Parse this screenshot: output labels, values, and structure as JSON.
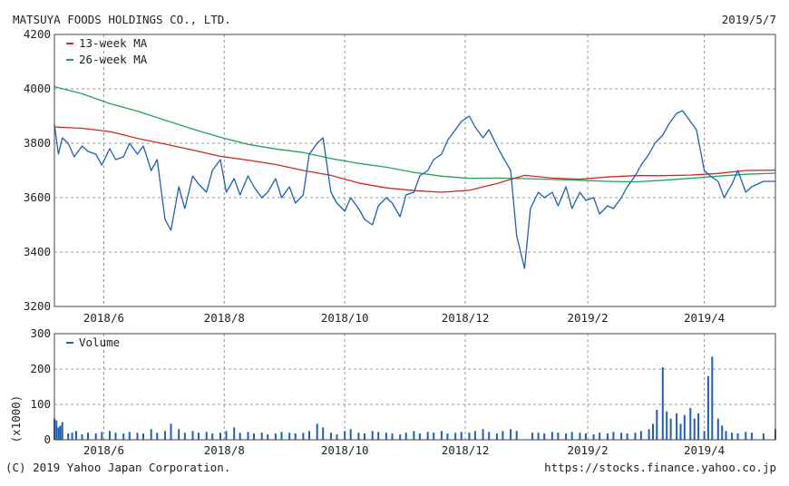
{
  "header": {
    "company": "MATSUYA FOODS HOLDINGS CO., LTD.",
    "date": "2019/5/7"
  },
  "footer": {
    "copyright": "(C) 2019 Yahoo Japan Corporation.",
    "url": "https://stocks.finance.yahoo.co.jp"
  },
  "colors": {
    "price": "#1f5fb4",
    "ma13": "#cc2a2a",
    "ma26": "#23a35a",
    "volume": "#1f5fb4",
    "grid": "#9a9a9a",
    "frame": "#444444"
  },
  "chart_data": [
    {
      "type": "line",
      "x_tick_labels": [
        "2018/6",
        "2018/8",
        "2018/10",
        "2018/12",
        "2019/2",
        "2019/4"
      ],
      "x_tick_dates": [
        "2018-06-01",
        "2018-08-01",
        "2018-10-01",
        "2018-12-01",
        "2019-02-01",
        "2019-04-01"
      ],
      "x_range": [
        "2018-05-07",
        "2019-05-07"
      ],
      "ylim": [
        3200,
        4200
      ],
      "y_ticks": [
        4200,
        4000,
        3800,
        3600,
        3400,
        3200
      ],
      "grid": true,
      "legend_position": "top-left",
      "series": [
        {
          "name": "13-week MA",
          "x": [
            "2018-05-07",
            "2018-05-21",
            "2018-06-04",
            "2018-06-18",
            "2018-07-02",
            "2018-07-16",
            "2018-07-30",
            "2018-08-13",
            "2018-08-27",
            "2018-09-10",
            "2018-09-24",
            "2018-10-08",
            "2018-10-22",
            "2018-11-05",
            "2018-11-19",
            "2018-12-03",
            "2018-12-17",
            "2018-12-31",
            "2019-01-14",
            "2019-01-28",
            "2019-02-11",
            "2019-02-25",
            "2019-03-11",
            "2019-03-25",
            "2019-04-08",
            "2019-04-22",
            "2019-05-07"
          ],
          "values": [
            3860,
            3855,
            3843,
            3818,
            3797,
            3775,
            3752,
            3738,
            3722,
            3700,
            3682,
            3654,
            3636,
            3626,
            3620,
            3627,
            3652,
            3682,
            3672,
            3668,
            3676,
            3681,
            3681,
            3683,
            3689,
            3700,
            3701
          ]
        },
        {
          "name": "26-week MA",
          "x": [
            "2018-05-07",
            "2018-05-21",
            "2018-06-04",
            "2018-06-18",
            "2018-07-02",
            "2018-07-16",
            "2018-07-30",
            "2018-08-13",
            "2018-08-27",
            "2018-09-10",
            "2018-09-24",
            "2018-10-08",
            "2018-10-22",
            "2018-11-05",
            "2018-11-19",
            "2018-12-03",
            "2018-12-17",
            "2018-12-31",
            "2019-01-14",
            "2019-01-28",
            "2019-02-11",
            "2019-02-25",
            "2019-03-11",
            "2019-03-25",
            "2019-04-08",
            "2019-04-22",
            "2019-05-07"
          ],
          "values": [
            4008,
            3982,
            3946,
            3918,
            3885,
            3852,
            3822,
            3796,
            3779,
            3766,
            3744,
            3726,
            3712,
            3693,
            3679,
            3671,
            3672,
            3670,
            3667,
            3664,
            3660,
            3658,
            3664,
            3671,
            3679,
            3686,
            3690
          ]
        },
        {
          "name": "",
          "x": [
            "2018-05-07",
            "2018-05-09",
            "2018-05-11",
            "2018-05-14",
            "2018-05-17",
            "2018-05-21",
            "2018-05-24",
            "2018-05-28",
            "2018-05-31",
            "2018-06-04",
            "2018-06-07",
            "2018-06-11",
            "2018-06-14",
            "2018-06-18",
            "2018-06-21",
            "2018-06-25",
            "2018-06-28",
            "2018-07-02",
            "2018-07-05",
            "2018-07-09",
            "2018-07-12",
            "2018-07-16",
            "2018-07-19",
            "2018-07-23",
            "2018-07-26",
            "2018-07-30",
            "2018-08-02",
            "2018-08-06",
            "2018-08-09",
            "2018-08-13",
            "2018-08-16",
            "2018-08-20",
            "2018-08-23",
            "2018-08-27",
            "2018-08-30",
            "2018-09-03",
            "2018-09-06",
            "2018-09-10",
            "2018-09-13",
            "2018-09-17",
            "2018-09-20",
            "2018-09-24",
            "2018-09-27",
            "2018-10-01",
            "2018-10-04",
            "2018-10-08",
            "2018-10-11",
            "2018-10-15",
            "2018-10-18",
            "2018-10-22",
            "2018-10-25",
            "2018-10-29",
            "2018-11-01",
            "2018-11-05",
            "2018-11-08",
            "2018-11-12",
            "2018-11-15",
            "2018-11-19",
            "2018-11-22",
            "2018-11-26",
            "2018-11-29",
            "2018-12-03",
            "2018-12-06",
            "2018-12-10",
            "2018-12-13",
            "2018-12-17",
            "2018-12-20",
            "2018-12-24",
            "2018-12-27",
            "2018-12-31",
            "2019-01-03",
            "2019-01-07",
            "2019-01-10",
            "2019-01-14",
            "2019-01-17",
            "2019-01-21",
            "2019-01-24",
            "2019-01-28",
            "2019-01-31",
            "2019-02-04",
            "2019-02-07",
            "2019-02-11",
            "2019-02-14",
            "2019-02-18",
            "2019-02-21",
            "2019-02-25",
            "2019-02-28",
            "2019-03-04",
            "2019-03-07",
            "2019-03-11",
            "2019-03-14",
            "2019-03-18",
            "2019-03-21",
            "2019-03-25",
            "2019-03-28",
            "2019-04-01",
            "2019-04-04",
            "2019-04-08",
            "2019-04-11",
            "2019-04-15",
            "2019-04-18",
            "2019-04-22",
            "2019-04-25",
            "2019-05-01",
            "2019-05-07"
          ],
          "values": [
            3870,
            3760,
            3820,
            3800,
            3750,
            3790,
            3770,
            3760,
            3720,
            3780,
            3740,
            3750,
            3800,
            3760,
            3790,
            3700,
            3740,
            3520,
            3480,
            3640,
            3560,
            3680,
            3650,
            3620,
            3700,
            3740,
            3620,
            3670,
            3610,
            3680,
            3640,
            3600,
            3620,
            3670,
            3600,
            3640,
            3580,
            3610,
            3760,
            3800,
            3820,
            3620,
            3580,
            3550,
            3600,
            3560,
            3520,
            3500,
            3570,
            3600,
            3580,
            3530,
            3610,
            3620,
            3680,
            3700,
            3740,
            3760,
            3810,
            3850,
            3880,
            3900,
            3860,
            3820,
            3850,
            3790,
            3750,
            3700,
            3460,
            3340,
            3560,
            3620,
            3600,
            3620,
            3570,
            3640,
            3560,
            3620,
            3590,
            3600,
            3540,
            3570,
            3560,
            3600,
            3640,
            3680,
            3720,
            3760,
            3800,
            3830,
            3870,
            3910,
            3920,
            3880,
            3850,
            3700,
            3680,
            3660,
            3600,
            3650,
            3700,
            3620,
            3640,
            3660,
            3660
          ]
        }
      ]
    },
    {
      "type": "bar",
      "legend": "Volume",
      "y_unit_label": "(x1000)",
      "ylim": [
        0,
        300
      ],
      "y_ticks": [
        300,
        200,
        100,
        0
      ],
      "x_tick_labels": [
        "2018/6",
        "2018/8",
        "2018/10",
        "2018/12",
        "2019/2",
        "2019/4"
      ],
      "x_tick_dates": [
        "2018-06-01",
        "2018-08-01",
        "2018-10-01",
        "2018-12-01",
        "2019-02-01",
        "2019-04-01"
      ],
      "x_range": [
        "2018-05-07",
        "2019-05-07"
      ],
      "grid": true,
      "legend_position": "top-left",
      "x": [
        "2018-05-07",
        "2018-05-08",
        "2018-05-09",
        "2018-05-10",
        "2018-05-11",
        "2018-05-14",
        "2018-05-16",
        "2018-05-18",
        "2018-05-21",
        "2018-05-24",
        "2018-05-28",
        "2018-05-31",
        "2018-06-04",
        "2018-06-07",
        "2018-06-11",
        "2018-06-14",
        "2018-06-18",
        "2018-06-21",
        "2018-06-25",
        "2018-06-28",
        "2018-07-02",
        "2018-07-05",
        "2018-07-09",
        "2018-07-12",
        "2018-07-16",
        "2018-07-19",
        "2018-07-23",
        "2018-07-26",
        "2018-07-30",
        "2018-08-02",
        "2018-08-06",
        "2018-08-09",
        "2018-08-13",
        "2018-08-16",
        "2018-08-20",
        "2018-08-23",
        "2018-08-27",
        "2018-08-30",
        "2018-09-03",
        "2018-09-06",
        "2018-09-10",
        "2018-09-13",
        "2018-09-17",
        "2018-09-20",
        "2018-09-24",
        "2018-09-27",
        "2018-10-01",
        "2018-10-04",
        "2018-10-08",
        "2018-10-11",
        "2018-10-15",
        "2018-10-18",
        "2018-10-22",
        "2018-10-25",
        "2018-10-29",
        "2018-11-01",
        "2018-11-05",
        "2018-11-08",
        "2018-11-12",
        "2018-11-15",
        "2018-11-19",
        "2018-11-22",
        "2018-11-26",
        "2018-11-29",
        "2018-12-03",
        "2018-12-06",
        "2018-12-10",
        "2018-12-13",
        "2018-12-17",
        "2018-12-20",
        "2018-12-24",
        "2018-12-27",
        "2019-01-04",
        "2019-01-07",
        "2019-01-10",
        "2019-01-14",
        "2019-01-17",
        "2019-01-21",
        "2019-01-24",
        "2019-01-28",
        "2019-01-31",
        "2019-02-04",
        "2019-02-07",
        "2019-02-11",
        "2019-02-14",
        "2019-02-18",
        "2019-02-21",
        "2019-02-25",
        "2019-02-28",
        "2019-03-04",
        "2019-03-06",
        "2019-03-08",
        "2019-03-11",
        "2019-03-13",
        "2019-03-15",
        "2019-03-18",
        "2019-03-20",
        "2019-03-22",
        "2019-03-25",
        "2019-03-27",
        "2019-03-29",
        "2019-04-01",
        "2019-04-03",
        "2019-04-05",
        "2019-04-08",
        "2019-04-10",
        "2019-04-12",
        "2019-04-15",
        "2019-04-18",
        "2019-04-22",
        "2019-04-25",
        "2019-05-01",
        "2019-05-07"
      ],
      "values": [
        60,
        55,
        35,
        40,
        50,
        18,
        20,
        25,
        15,
        20,
        18,
        22,
        25,
        20,
        18,
        22,
        20,
        18,
        30,
        20,
        25,
        45,
        30,
        20,
        25,
        20,
        22,
        18,
        20,
        25,
        35,
        20,
        22,
        18,
        20,
        15,
        18,
        22,
        20,
        18,
        20,
        25,
        45,
        35,
        20,
        15,
        25,
        30,
        20,
        18,
        25,
        22,
        20,
        18,
        15,
        20,
        25,
        18,
        22,
        20,
        25,
        18,
        20,
        22,
        20,
        25,
        30,
        22,
        18,
        25,
        30,
        25,
        20,
        20,
        18,
        22,
        20,
        18,
        22,
        20,
        18,
        15,
        20,
        18,
        22,
        20,
        18,
        20,
        25,
        30,
        45,
        85,
        205,
        80,
        60,
        75,
        45,
        70,
        90,
        60,
        75,
        25,
        180,
        235,
        60,
        40,
        25,
        20,
        18,
        22,
        20,
        18,
        30
      ]
    }
  ]
}
